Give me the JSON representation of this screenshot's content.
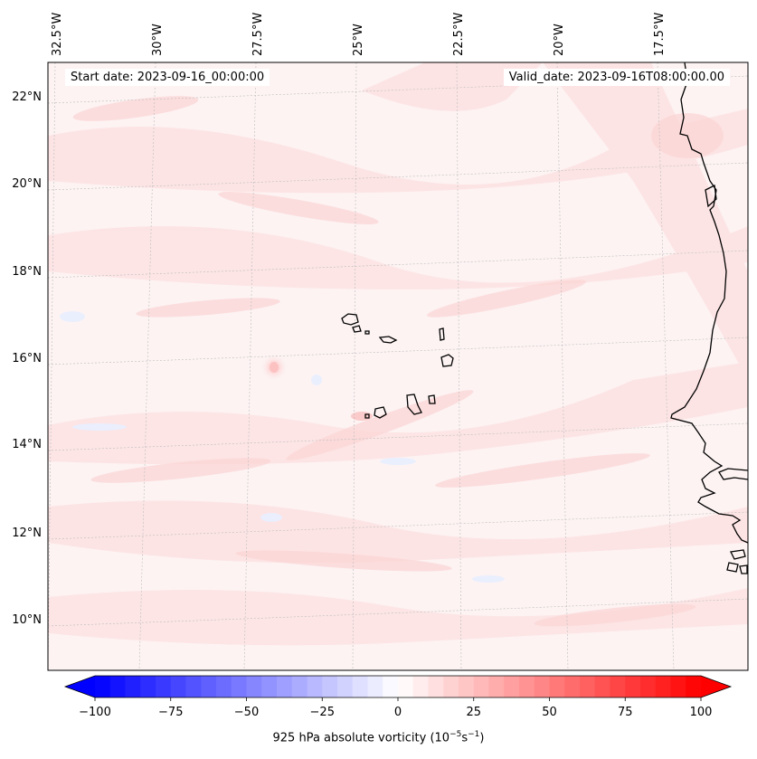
{
  "map": {
    "start_date_text": "Start date: 2023-09-16_00:00:00",
    "valid_date_text": "Valid_date: 2023-09-16T08:00:00.00",
    "lon_labels": [
      "32.5°W",
      "30°W",
      "27.5°W",
      "25°W",
      "22.5°W",
      "20°W",
      "17.5°W"
    ],
    "lat_labels": [
      "22°N",
      "20°N",
      "18°N",
      "16°N",
      "14°N",
      "12°N",
      "10°N"
    ],
    "field": "925 hPa absolute vorticity",
    "colormap": "bwr",
    "coast_color": "#000000",
    "grid": true
  },
  "colorbar": {
    "ticks": [
      "−100",
      "−75",
      "−50",
      "−25",
      "0",
      "25",
      "50",
      "75",
      "100"
    ],
    "label_prefix": "925 hPa absolute vorticity (10",
    "label_exp1": "−5",
    "label_mid": "s",
    "label_exp2": "−1",
    "label_suffix": ")",
    "min": -100,
    "max": 100,
    "extend": "both",
    "low_color": "#0000ff",
    "mid_color": "#ffffff",
    "high_color": "#ff0000"
  }
}
